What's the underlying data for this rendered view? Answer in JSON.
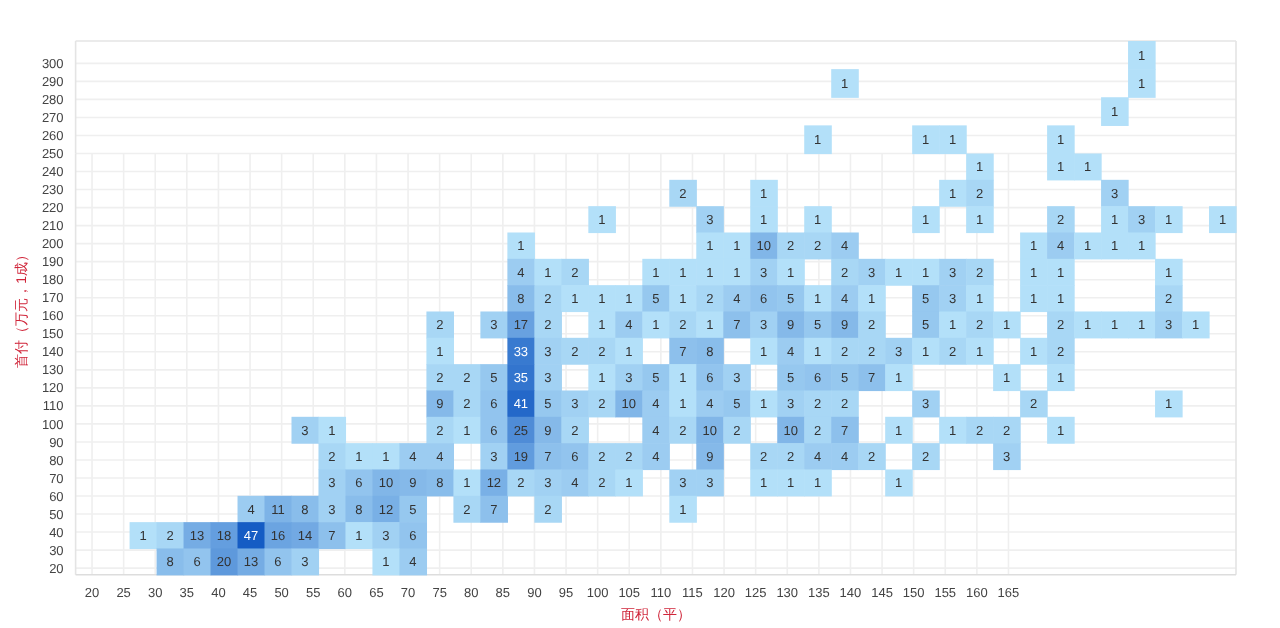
{
  "chart_data": [
    {
      "type": "heatmap",
      "tick_labels": "y",
      "cells": [
        [
          null,
          null,
          null,
          null,
          null,
          null,
          null,
          null,
          null,
          null,
          null,
          null,
          null,
          null,
          null,
          null,
          null,
          null,
          null,
          null,
          null,
          null,
          null,
          null,
          null,
          null,
          null,
          null,
          null,
          null,
          null,
          null,
          null,
          null,
          null,
          null,
          null,
          null,
          null,
          1,
          null,
          null,
          null
        ],
        [
          null,
          null,
          null,
          null,
          null,
          null,
          null,
          null,
          null,
          null,
          null,
          null,
          null,
          null,
          null,
          null,
          null,
          null,
          null,
          null,
          null,
          null,
          null,
          null,
          null,
          null,
          null,
          null,
          1,
          null,
          null,
          null,
          null,
          null,
          null,
          null,
          null,
          null,
          null,
          1,
          null,
          null,
          null
        ],
        [
          null,
          null,
          null,
          null,
          null,
          null,
          null,
          null,
          null,
          null,
          null,
          null,
          null,
          null,
          null,
          null,
          null,
          null,
          null,
          null,
          null,
          null,
          null,
          null,
          null,
          null,
          null,
          null,
          null,
          null,
          null,
          null,
          null,
          null,
          null,
          null,
          null,
          null,
          1,
          null,
          null,
          null,
          null
        ],
        [
          null,
          null,
          null,
          null,
          null,
          null,
          null,
          null,
          null,
          null,
          null,
          null,
          null,
          null,
          null,
          null,
          null,
          null,
          null,
          null,
          null,
          null,
          null,
          null,
          null,
          null,
          null,
          1,
          null,
          null,
          null,
          1,
          1,
          null,
          null,
          null,
          1,
          null,
          null,
          null,
          null,
          null,
          null
        ]
      ],
      "xlim": [
        17.4,
        201.0
      ],
      "ylim": [
        250,
        312.4
      ],
      "yticks": [
        260,
        270,
        280,
        290,
        300
      ],
      "grid": true,
      "data_labels": true
    },
    {
      "type": "heatmap",
      "xlabel": "面积（平）",
      "ylabel": "首付（万元，1成）",
      "cells": [
        [
          null,
          null,
          null,
          null,
          null,
          null,
          null,
          null,
          null,
          null,
          null,
          null,
          null,
          null,
          null,
          null,
          null,
          null,
          null,
          null,
          null,
          null,
          null,
          null,
          null,
          null,
          null,
          null,
          null,
          null,
          null,
          null,
          null,
          1,
          null,
          null,
          1,
          1,
          null,
          null,
          null,
          null,
          null
        ],
        [
          null,
          null,
          null,
          null,
          null,
          null,
          null,
          null,
          null,
          null,
          null,
          null,
          null,
          null,
          null,
          null,
          null,
          null,
          null,
          null,
          null,
          null,
          2,
          null,
          null,
          1,
          null,
          null,
          null,
          null,
          null,
          null,
          1,
          2,
          null,
          null,
          null,
          null,
          3,
          null,
          null,
          null,
          null
        ],
        [
          null,
          null,
          null,
          null,
          null,
          null,
          null,
          null,
          null,
          null,
          null,
          null,
          null,
          null,
          null,
          null,
          null,
          null,
          null,
          1,
          null,
          null,
          null,
          3,
          null,
          1,
          null,
          1,
          null,
          null,
          null,
          1,
          null,
          1,
          null,
          null,
          2,
          null,
          1,
          3,
          1,
          null,
          1
        ],
        [
          null,
          null,
          null,
          null,
          null,
          null,
          null,
          null,
          null,
          null,
          null,
          null,
          null,
          null,
          null,
          null,
          1,
          null,
          null,
          null,
          null,
          null,
          null,
          1,
          1,
          10,
          2,
          2,
          4,
          null,
          null,
          null,
          null,
          null,
          null,
          1,
          4,
          1,
          1,
          1,
          null,
          null,
          null
        ],
        [
          null,
          null,
          null,
          null,
          null,
          null,
          null,
          null,
          null,
          null,
          null,
          null,
          null,
          null,
          null,
          null,
          4,
          1,
          2,
          null,
          null,
          1,
          1,
          1,
          1,
          3,
          1,
          null,
          2,
          3,
          1,
          1,
          3,
          2,
          null,
          1,
          1,
          null,
          null,
          null,
          1,
          null,
          null
        ],
        [
          null,
          null,
          null,
          null,
          null,
          null,
          null,
          null,
          null,
          null,
          null,
          null,
          null,
          null,
          null,
          null,
          8,
          2,
          1,
          1,
          1,
          5,
          1,
          2,
          4,
          6,
          5,
          1,
          4,
          1,
          null,
          5,
          3,
          1,
          null,
          1,
          1,
          null,
          null,
          null,
          2,
          null,
          null
        ],
        [
          null,
          null,
          null,
          null,
          null,
          null,
          null,
          null,
          null,
          null,
          null,
          null,
          null,
          2,
          null,
          3,
          17,
          2,
          null,
          1,
          4,
          1,
          2,
          1,
          7,
          3,
          9,
          5,
          9,
          2,
          null,
          5,
          1,
          2,
          1,
          null,
          2,
          1,
          1,
          1,
          3,
          1,
          null
        ],
        [
          null,
          null,
          null,
          null,
          null,
          null,
          null,
          null,
          null,
          null,
          null,
          null,
          null,
          1,
          null,
          null,
          33,
          3,
          2,
          2,
          1,
          null,
          7,
          8,
          null,
          1,
          4,
          1,
          2,
          2,
          3,
          1,
          2,
          1,
          null,
          1,
          2,
          null,
          null,
          null,
          null,
          null,
          null
        ],
        [
          null,
          null,
          null,
          null,
          null,
          null,
          null,
          null,
          null,
          null,
          null,
          null,
          null,
          2,
          2,
          5,
          35,
          3,
          null,
          1,
          3,
          5,
          1,
          6,
          3,
          null,
          5,
          6,
          5,
          7,
          1,
          null,
          null,
          null,
          1,
          null,
          1,
          null,
          null,
          null,
          null,
          null,
          null
        ],
        [
          null,
          null,
          null,
          null,
          null,
          null,
          null,
          null,
          null,
          null,
          null,
          null,
          null,
          9,
          2,
          6,
          41,
          5,
          3,
          2,
          10,
          4,
          1,
          4,
          5,
          1,
          3,
          2,
          2,
          null,
          null,
          3,
          null,
          null,
          null,
          2,
          null,
          null,
          null,
          null,
          1,
          null,
          null
        ],
        [
          null,
          null,
          null,
          null,
          null,
          null,
          null,
          null,
          3,
          1,
          null,
          null,
          null,
          2,
          1,
          6,
          25,
          9,
          2,
          null,
          null,
          4,
          2,
          10,
          2,
          null,
          10,
          2,
          7,
          null,
          1,
          null,
          1,
          2,
          2,
          null,
          1,
          null,
          null,
          null,
          null,
          null,
          null
        ],
        [
          null,
          null,
          null,
          null,
          null,
          null,
          null,
          null,
          null,
          2,
          1,
          1,
          4,
          4,
          null,
          3,
          19,
          7,
          6,
          2,
          2,
          4,
          null,
          9,
          null,
          2,
          2,
          4,
          4,
          2,
          null,
          2,
          null,
          null,
          3,
          null,
          null,
          null,
          null,
          null,
          null,
          null,
          null
        ],
        [
          null,
          null,
          null,
          null,
          null,
          null,
          null,
          null,
          null,
          3,
          6,
          10,
          9,
          8,
          1,
          12,
          2,
          3,
          4,
          2,
          1,
          null,
          3,
          3,
          null,
          1,
          1,
          1,
          null,
          null,
          1,
          null,
          null,
          null,
          null,
          null,
          null,
          null,
          null,
          null,
          null,
          null,
          null
        ],
        [
          null,
          null,
          null,
          null,
          null,
          null,
          4,
          11,
          8,
          3,
          8,
          12,
          5,
          null,
          2,
          7,
          null,
          2,
          null,
          null,
          null,
          null,
          1,
          null,
          null,
          null,
          null,
          null,
          null,
          null,
          null,
          null,
          null,
          null,
          null,
          null,
          null,
          null,
          null,
          null,
          null,
          null,
          null
        ],
        [
          null,
          null,
          1,
          2,
          13,
          18,
          47,
          16,
          14,
          7,
          1,
          3,
          6,
          null,
          null,
          null,
          null,
          null,
          null,
          null,
          null,
          null,
          null,
          null,
          null,
          null,
          null,
          null,
          null,
          null,
          null,
          null,
          null,
          null,
          null,
          null,
          null,
          null,
          null,
          null,
          null,
          null,
          null
        ],
        [
          null,
          null,
          null,
          8,
          6,
          20,
          13,
          6,
          3,
          null,
          null,
          1,
          4,
          null,
          null,
          null,
          null,
          null,
          null,
          null,
          null,
          null,
          null,
          null,
          null,
          null,
          null,
          null,
          null,
          null,
          null,
          null,
          null,
          null,
          null,
          null,
          null,
          null,
          null,
          null,
          null,
          null,
          null
        ]
      ],
      "xlim": [
        17.4,
        201.0
      ],
      "ylim": [
        16.3,
        250
      ],
      "xticks": [
        20,
        25,
        30,
        35,
        40,
        45,
        50,
        55,
        60,
        65,
        70,
        75,
        80,
        85,
        90,
        95,
        100,
        105,
        110,
        115,
        120,
        125,
        130,
        135,
        140,
        145,
        150,
        155,
        160,
        165
      ],
      "yticks": [
        20,
        30,
        40,
        50,
        60,
        70,
        80,
        90,
        100,
        110,
        120,
        130,
        140,
        150,
        160,
        170,
        180,
        190,
        200,
        210,
        220,
        230,
        240,
        250
      ],
      "grid": true,
      "data_labels": true
    }
  ]
}
